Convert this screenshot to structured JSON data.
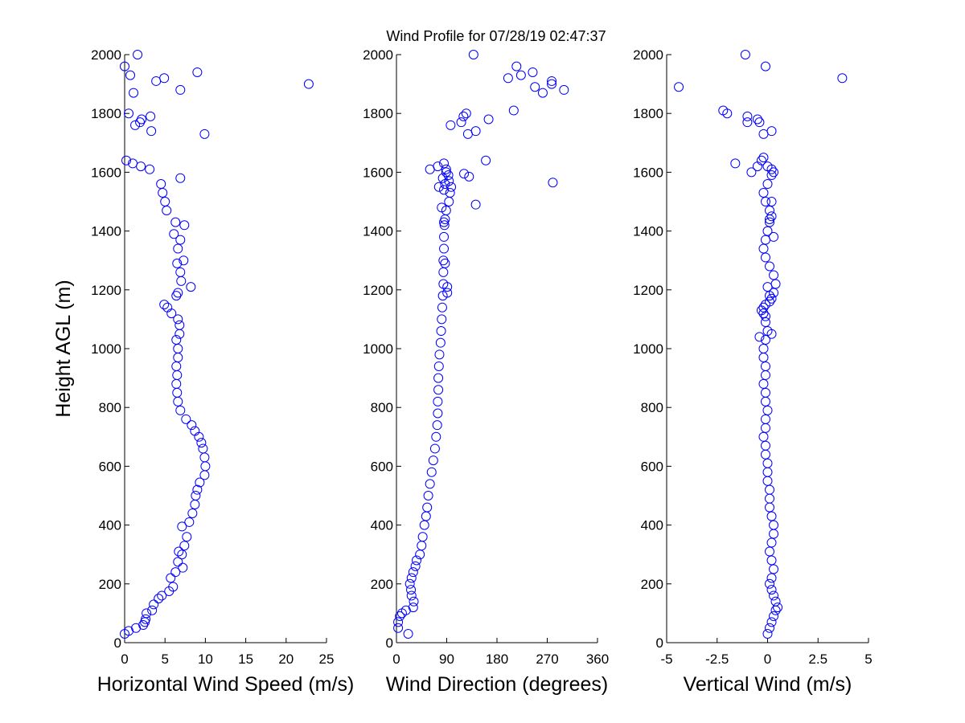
{
  "figure": {
    "title": "Wind Profile for  07/28/19 02:47:37"
  },
  "colors": {
    "marker": "#0000ff",
    "axis": "#000000",
    "background": "#ffffff"
  },
  "chart_data": [
    {
      "type": "scatter",
      "xlabel": "Horizontal Wind Speed (m/s)",
      "ylabel": "Height AGL (m)",
      "xlim": [
        0,
        25
      ],
      "ylim": [
        0,
        2000
      ],
      "xticks": [
        0,
        5,
        10,
        15,
        20,
        25
      ],
      "xtick_labels": [
        "0",
        "5",
        "10",
        "15",
        "20",
        "25"
      ],
      "yticks": [
        0,
        200,
        400,
        600,
        800,
        1000,
        1200,
        1400,
        1600,
        1800,
        2000
      ],
      "ytick_labels": [
        "0",
        "200",
        "400",
        "600",
        "800",
        "1000",
        "1200",
        "1400",
        "1600",
        "1800",
        "2000"
      ],
      "x": [
        0.0,
        0.5,
        1.4,
        2.3,
        2.5,
        2.6,
        2.7,
        3.4,
        3.6,
        4.2,
        4.6,
        5.5,
        6.0,
        5.7,
        6.3,
        7.2,
        6.6,
        7.1,
        7.4,
        7.7,
        6.7,
        7.1,
        8.0,
        8.4,
        8.7,
        8.8,
        9.0,
        9.3,
        9.9,
        10.0,
        9.9,
        9.7,
        9.5,
        9.2,
        8.7,
        8.3,
        7.6,
        6.9,
        6.6,
        6.5,
        6.4,
        6.5,
        6.4,
        6.6,
        6.6,
        6.4,
        6.8,
        6.8,
        6.6,
        5.8,
        5.3,
        4.9,
        6.4,
        6.6,
        8.2,
        7.0,
        6.9,
        6.5,
        7.3,
        6.6,
        6.9,
        6.1,
        7.4,
        6.3,
        5.2,
        5.0,
        4.7,
        4.5,
        6.9,
        3.1,
        2.0,
        1.0,
        0.2,
        9.9,
        3.3,
        1.3,
        1.9,
        2.1,
        0.5,
        3.2,
        6.9,
        1.1,
        4.9,
        9.0,
        22.8,
        3.9,
        0.7,
        0.0,
        1.6
      ],
      "y": [
        30,
        40,
        50,
        60,
        70,
        80,
        100,
        110,
        130,
        150,
        160,
        175,
        190,
        220,
        240,
        255,
        275,
        300,
        330,
        360,
        310,
        395,
        410,
        440,
        470,
        500,
        520,
        545,
        570,
        600,
        630,
        660,
        680,
        700,
        720,
        740,
        760,
        790,
        820,
        850,
        880,
        910,
        940,
        970,
        1000,
        1030,
        1050,
        1080,
        1100,
        1120,
        1140,
        1150,
        1180,
        1190,
        1210,
        1230,
        1260,
        1290,
        1300,
        1340,
        1370,
        1390,
        1420,
        1430,
        1470,
        1500,
        1530,
        1560,
        1580,
        1610,
        1620,
        1630,
        1640,
        1730,
        1740,
        1760,
        1770,
        1780,
        1800,
        1790,
        1880,
        1870,
        1920,
        1940,
        1900,
        1910,
        1930,
        1960,
        2000
      ]
    },
    {
      "type": "scatter",
      "xlabel": "Wind Direction (degrees)",
      "xlim": [
        0,
        360
      ],
      "ylim": [
        0,
        2000
      ],
      "xticks": [
        0,
        90,
        180,
        270,
        360
      ],
      "xtick_labels": [
        "0",
        "90",
        "180",
        "270",
        "360"
      ],
      "yticks": [
        0,
        200,
        400,
        600,
        800,
        1000,
        1200,
        1400,
        1600,
        1800,
        2000
      ],
      "ytick_labels": [
        "0",
        "200",
        "400",
        "600",
        "800",
        "1000",
        "1200",
        "1400",
        "1600",
        "1800",
        "2000"
      ],
      "x": [
        21,
        3,
        3,
        6,
        10,
        17,
        30,
        31,
        27,
        26,
        24,
        27,
        30,
        34,
        36,
        42,
        45,
        47,
        50,
        53,
        55,
        57,
        60,
        63,
        66,
        69,
        71,
        73,
        74,
        74,
        75,
        75,
        76,
        77,
        79,
        80,
        81,
        82,
        83,
        84,
        84,
        84,
        85,
        85,
        86,
        87,
        89,
        94,
        96,
        98,
        94,
        93,
        91,
        87,
        85,
        81,
        83,
        89,
        87,
        76,
        85,
        91,
        89,
        60,
        74,
        85,
        160,
        97,
        142,
        116,
        165,
        120,
        128,
        125,
        210,
        262,
        300,
        248,
        278,
        278,
        200,
        223,
        244,
        215,
        138,
        130,
        121,
        280,
        142
      ],
      "y": [
        30,
        50,
        70,
        90,
        100,
        110,
        120,
        140,
        160,
        180,
        200,
        220,
        240,
        260,
        280,
        300,
        330,
        360,
        400,
        430,
        460,
        500,
        540,
        580,
        620,
        660,
        700,
        740,
        780,
        820,
        860,
        900,
        940,
        980,
        1020,
        1060,
        1100,
        1140,
        1180,
        1220,
        1260,
        1300,
        1340,
        1380,
        1420,
        1440,
        1470,
        1500,
        1530,
        1550,
        1570,
        1590,
        1190,
        1290,
        1430,
        1480,
        1580,
        1600,
        1560,
        1550,
        1540,
        1210,
        1610,
        1610,
        1620,
        1630,
        1640,
        1760,
        1740,
        1770,
        1780,
        1790,
        1730,
        1800,
        1810,
        1870,
        1880,
        1890,
        1900,
        1910,
        1920,
        1930,
        1940,
        1960,
        2000,
        1585,
        1595,
        1565,
        1490
      ]
    },
    {
      "type": "scatter",
      "xlabel": "Vertical Wind (m/s)",
      "xlim": [
        -5,
        5
      ],
      "ylim": [
        0,
        2000
      ],
      "xticks": [
        -5,
        -2.5,
        0,
        2.5,
        5
      ],
      "xtick_labels": [
        "-5",
        "-2.5",
        "0",
        "2.5",
        "5"
      ],
      "yticks": [
        0,
        200,
        400,
        600,
        800,
        1000,
        1200,
        1400,
        1600,
        1800,
        2000
      ],
      "ytick_labels": [
        "0",
        "200",
        "400",
        "600",
        "800",
        "1000",
        "1200",
        "1400",
        "1600",
        "1800",
        "2000"
      ],
      "x": [
        0.0,
        0.1,
        0.2,
        0.3,
        0.4,
        0.5,
        0.4,
        0.3,
        0.2,
        0.1,
        0.2,
        0.3,
        0.2,
        0.1,
        0.2,
        0.3,
        0.3,
        0.2,
        0.1,
        0.1,
        0.1,
        0.0,
        0.0,
        0.0,
        -0.1,
        -0.1,
        -0.2,
        -0.1,
        -0.1,
        0.0,
        -0.1,
        -0.1,
        -0.2,
        -0.1,
        -0.1,
        -0.2,
        -0.2,
        -0.1,
        0.0,
        -0.1,
        -0.1,
        -0.2,
        -0.3,
        -0.2,
        -0.1,
        0.1,
        0.2,
        0.3,
        0.4,
        0.3,
        0.1,
        -0.1,
        -0.2,
        -0.1,
        0.0,
        0.1,
        0.2,
        0.1,
        -0.1,
        -0.2,
        0.0,
        0.2,
        0.3,
        0.2,
        0.0,
        -0.3,
        -0.2,
        0.1,
        0.3,
        0.1,
        -0.4,
        -0.8,
        -0.5,
        0.2,
        -0.2,
        -0.4,
        -1.0,
        -0.5,
        -2.2,
        -1.0,
        -1.6,
        0.2,
        -2.0,
        -4.4,
        -0.1,
        -1.1,
        3.7,
        0.0,
        0.2
      ],
      "y": [
        30,
        50,
        70,
        90,
        110,
        120,
        140,
        160,
        180,
        200,
        220,
        250,
        280,
        310,
        340,
        370,
        400,
        430,
        460,
        490,
        520,
        550,
        580,
        610,
        640,
        670,
        700,
        730,
        760,
        790,
        820,
        850,
        880,
        910,
        940,
        970,
        1000,
        1030,
        1060,
        1090,
        1110,
        1120,
        1130,
        1140,
        1150,
        1160,
        1170,
        1190,
        1220,
        1250,
        1280,
        1310,
        1340,
        1370,
        1400,
        1430,
        1450,
        1470,
        1500,
        1530,
        1560,
        1590,
        1600,
        1610,
        1620,
        1640,
        1650,
        1440,
        1380,
        1180,
        1040,
        1600,
        1620,
        1740,
        1730,
        1770,
        1790,
        1780,
        1810,
        1770,
        1630,
        1500,
        1800,
        1890,
        1960,
        2000,
        1920,
        1210,
        1050
      ]
    }
  ]
}
